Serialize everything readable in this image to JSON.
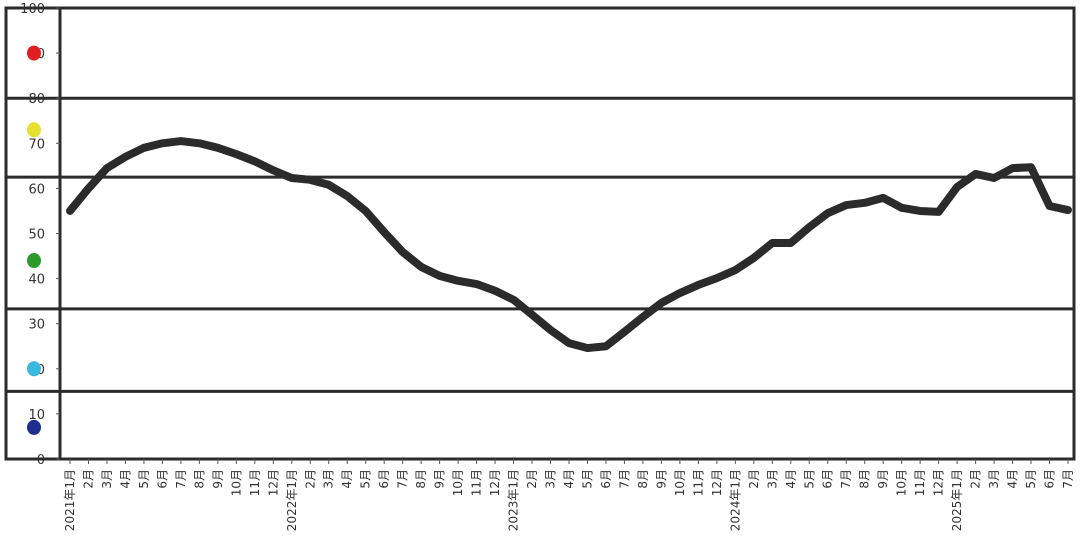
{
  "chart_data": {
    "type": "line",
    "title": "",
    "xlabel": "",
    "ylabel": "",
    "ylim": [
      0,
      100
    ],
    "yticks": [
      "0",
      "10",
      "20",
      "30",
      "40",
      "50",
      "60",
      "70",
      "80",
      "90",
      "100"
    ],
    "band_lines": [
      80,
      62.5,
      33.3,
      15
    ],
    "signal_lights": [
      {
        "level": 90,
        "color": "#e02020"
      },
      {
        "level": 73,
        "color": "#e6e030"
      },
      {
        "level": 44,
        "color": "#2a9a2a"
      },
      {
        "level": 20,
        "color": "#3ab8e0"
      },
      {
        "level": 7,
        "color": "#1e2e90"
      }
    ],
    "line_color": "#2b2b2b",
    "grid": false,
    "categories": [
      "2021年1月",
      "2月",
      "3月",
      "4月",
      "5月",
      "6月",
      "7月",
      "8月",
      "9月",
      "10月",
      "11月",
      "12月",
      "2022年1月",
      "2月",
      "3月",
      "4月",
      "5月",
      "6月",
      "7月",
      "8月",
      "9月",
      "10月",
      "11月",
      "12月",
      "2023年1月",
      "2月",
      "3月",
      "4月",
      "5月",
      "6月",
      "7月",
      "8月",
      "9月",
      "10月",
      "11月",
      "12月",
      "2024年1月",
      "2月",
      "3月",
      "4月",
      "5月",
      "6月",
      "7月",
      "8月",
      "9月",
      "10月",
      "11月",
      "12月",
      "2025年1月",
      "2月",
      "3月",
      "4月",
      "5月",
      "6月",
      "7月"
    ],
    "values": [
      55,
      60,
      64.5,
      67,
      69,
      70,
      70.5,
      70,
      69,
      67.6,
      66,
      64,
      62.3,
      61.9,
      60.8,
      58.3,
      55,
      50.3,
      45.9,
      42.6,
      40.6,
      39.5,
      38.8,
      37.3,
      35.3,
      32,
      28.6,
      25.7,
      24.6,
      25,
      28.2,
      31.5,
      34.6,
      36.8,
      38.6,
      40.1,
      41.9,
      44.6,
      47.9,
      47.9,
      51.4,
      54.5,
      56.3,
      56.8,
      57.9,
      55.7,
      55,
      54.8,
      60.3,
      63.2,
      62.3,
      64.5,
      64.7,
      56.1,
      55.2
    ]
  }
}
